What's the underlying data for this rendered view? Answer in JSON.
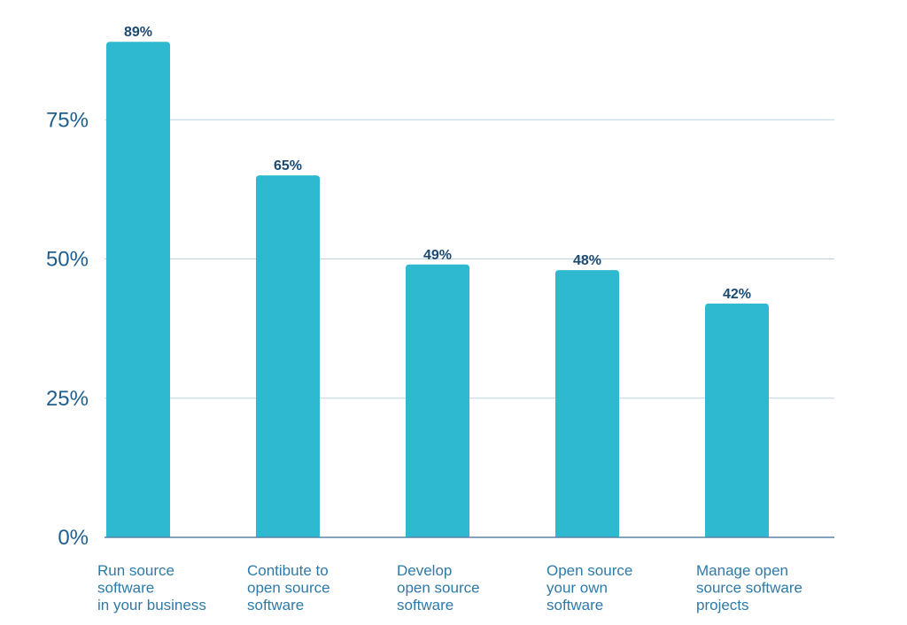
{
  "chart_data": {
    "type": "bar",
    "categories": [
      "Run source software in your business",
      "Contibute to open source software",
      "Develop open source software",
      "Open source your own software",
      "Manage open source software projects"
    ],
    "category_lines": [
      [
        "Run source",
        "software",
        "in your business"
      ],
      [
        "Contibute to",
        "open source",
        "software"
      ],
      [
        "Develop",
        "open source",
        "software"
      ],
      [
        "Open source",
        "your own",
        "software"
      ],
      [
        "Manage open",
        "source software",
        "projects"
      ]
    ],
    "values": [
      89,
      65,
      49,
      48,
      42
    ],
    "value_labels": [
      "89%",
      "65%",
      "49%",
      "48%",
      "42%"
    ],
    "y_ticks": [
      0,
      25,
      50,
      75
    ],
    "y_tick_labels": [
      "0%",
      "25%",
      "50%",
      "75%"
    ],
    "ylim": [
      0,
      100
    ],
    "grid": true,
    "legend": "none",
    "title": "",
    "xlabel": "",
    "ylabel": "",
    "colors": {
      "bar": "#2eb9d0"
    }
  }
}
